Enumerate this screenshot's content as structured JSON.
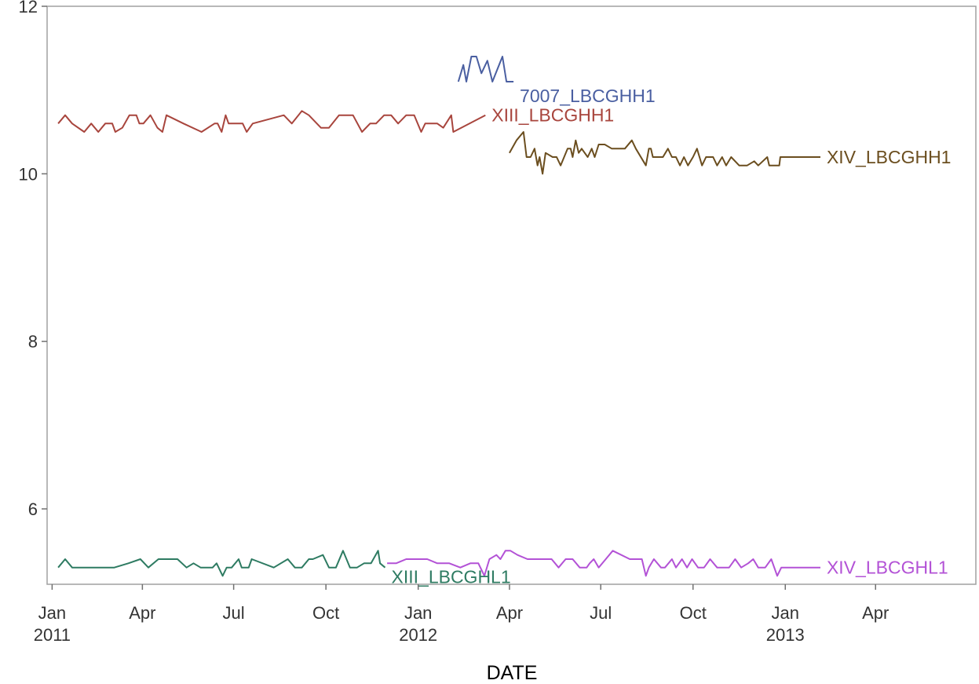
{
  "chart_data": {
    "type": "line",
    "xlabel": "DATE",
    "ylabel": "",
    "xlim": [
      "2010-12-27",
      "2013-07-10"
    ],
    "ylim": [
      5.1,
      12.0
    ],
    "x_ticks": [
      {
        "date": "2011-01-01",
        "line1": "Jan",
        "line2": "2011"
      },
      {
        "date": "2011-04-01",
        "line1": "Apr",
        "line2": ""
      },
      {
        "date": "2011-07-01",
        "line1": "Jul",
        "line2": ""
      },
      {
        "date": "2011-10-01",
        "line1": "Oct",
        "line2": ""
      },
      {
        "date": "2012-01-01",
        "line1": "Jan",
        "line2": "2012"
      },
      {
        "date": "2012-04-01",
        "line1": "Apr",
        "line2": ""
      },
      {
        "date": "2012-07-01",
        "line1": "Jul",
        "line2": ""
      },
      {
        "date": "2012-10-01",
        "line1": "Oct",
        "line2": ""
      },
      {
        "date": "2013-01-01",
        "line1": "Jan",
        "line2": "2013"
      },
      {
        "date": "2013-04-01",
        "line1": "Apr",
        "line2": ""
      }
    ],
    "y_ticks": [
      {
        "value": 6,
        "label": "6"
      },
      {
        "value": 8,
        "label": "8"
      },
      {
        "value": 10,
        "label": "10"
      },
      {
        "value": 12,
        "label": "12"
      }
    ],
    "grid": false,
    "series": [
      {
        "name": "7007_LBCGHH1",
        "color": "#4a5fa1",
        "points": [
          [
            "2012-02-10",
            11.1
          ],
          [
            "2012-02-15",
            11.3
          ],
          [
            "2012-02-18",
            11.1
          ],
          [
            "2012-02-23",
            11.4
          ],
          [
            "2012-02-28",
            11.4
          ],
          [
            "2012-03-04",
            11.2
          ],
          [
            "2012-03-10",
            11.35
          ],
          [
            "2012-03-15",
            11.1
          ],
          [
            "2012-03-25",
            11.4
          ],
          [
            "2012-03-29",
            11.1
          ],
          [
            "2012-04-05",
            11.1
          ]
        ]
      },
      {
        "name": "XIII_LBCGHH1",
        "color": "#a8453d",
        "points": [
          [
            "2011-01-07",
            10.6
          ],
          [
            "2011-01-14",
            10.7
          ],
          [
            "2011-01-21",
            10.6
          ],
          [
            "2011-02-02",
            10.5
          ],
          [
            "2011-02-09",
            10.6
          ],
          [
            "2011-02-16",
            10.5
          ],
          [
            "2011-02-23",
            10.6
          ],
          [
            "2011-03-02",
            10.6
          ],
          [
            "2011-03-05",
            10.5
          ],
          [
            "2011-03-12",
            10.55
          ],
          [
            "2011-03-19",
            10.7
          ],
          [
            "2011-03-26",
            10.7
          ],
          [
            "2011-03-29",
            10.6
          ],
          [
            "2011-04-02",
            10.6
          ],
          [
            "2011-04-09",
            10.7
          ],
          [
            "2011-04-16",
            10.55
          ],
          [
            "2011-04-21",
            10.5
          ],
          [
            "2011-04-25",
            10.7
          ],
          [
            "2011-05-12",
            10.6
          ],
          [
            "2011-05-30",
            10.5
          ],
          [
            "2011-06-12",
            10.6
          ],
          [
            "2011-06-15",
            10.6
          ],
          [
            "2011-06-19",
            10.5
          ],
          [
            "2011-06-23",
            10.7
          ],
          [
            "2011-06-26",
            10.6
          ],
          [
            "2011-07-10",
            10.6
          ],
          [
            "2011-07-14",
            10.5
          ],
          [
            "2011-07-20",
            10.6
          ],
          [
            "2011-08-20",
            10.7
          ],
          [
            "2011-08-28",
            10.6
          ],
          [
            "2011-09-07",
            10.75
          ],
          [
            "2011-09-14",
            10.7
          ],
          [
            "2011-09-26",
            10.55
          ],
          [
            "2011-10-04",
            10.55
          ],
          [
            "2011-10-14",
            10.7
          ],
          [
            "2011-10-28",
            10.7
          ],
          [
            "2011-11-06",
            10.5
          ],
          [
            "2011-11-14",
            10.6
          ],
          [
            "2011-11-20",
            10.6
          ],
          [
            "2011-11-28",
            10.7
          ],
          [
            "2011-12-05",
            10.7
          ],
          [
            "2011-12-12",
            10.6
          ],
          [
            "2011-12-20",
            10.7
          ],
          [
            "2011-12-28",
            10.7
          ],
          [
            "2012-01-04",
            10.5
          ],
          [
            "2012-01-08",
            10.6
          ],
          [
            "2012-01-20",
            10.6
          ],
          [
            "2012-01-26",
            10.55
          ],
          [
            "2012-02-03",
            10.7
          ],
          [
            "2012-02-05",
            10.5
          ],
          [
            "2012-03-08",
            10.7
          ]
        ]
      },
      {
        "name": "XIV_LBCGHH1",
        "color": "#6b4e1f",
        "points": [
          [
            "2012-04-01",
            10.25
          ],
          [
            "2012-04-08",
            10.4
          ],
          [
            "2012-04-15",
            10.5
          ],
          [
            "2012-04-18",
            10.2
          ],
          [
            "2012-04-22",
            10.2
          ],
          [
            "2012-04-26",
            10.3
          ],
          [
            "2012-04-29",
            10.1
          ],
          [
            "2012-05-01",
            10.2
          ],
          [
            "2012-05-04",
            10.0
          ],
          [
            "2012-05-07",
            10.25
          ],
          [
            "2012-05-14",
            10.2
          ],
          [
            "2012-05-18",
            10.2
          ],
          [
            "2012-05-22",
            10.1
          ],
          [
            "2012-05-29",
            10.3
          ],
          [
            "2012-06-01",
            10.3
          ],
          [
            "2012-06-03",
            10.2
          ],
          [
            "2012-06-06",
            10.4
          ],
          [
            "2012-06-09",
            10.25
          ],
          [
            "2012-06-12",
            10.3
          ],
          [
            "2012-06-18",
            10.2
          ],
          [
            "2012-06-22",
            10.3
          ],
          [
            "2012-06-25",
            10.2
          ],
          [
            "2012-06-29",
            10.35
          ],
          [
            "2012-07-05",
            10.35
          ],
          [
            "2012-07-12",
            10.3
          ],
          [
            "2012-07-18",
            10.3
          ],
          [
            "2012-07-25",
            10.3
          ],
          [
            "2012-08-01",
            10.4
          ],
          [
            "2012-08-05",
            10.3
          ],
          [
            "2012-08-15",
            10.1
          ],
          [
            "2012-08-18",
            10.3
          ],
          [
            "2012-08-20",
            10.3
          ],
          [
            "2012-08-22",
            10.2
          ],
          [
            "2012-08-26",
            10.2
          ],
          [
            "2012-09-01",
            10.2
          ],
          [
            "2012-09-06",
            10.3
          ],
          [
            "2012-09-10",
            10.2
          ],
          [
            "2012-09-14",
            10.2
          ],
          [
            "2012-09-18",
            10.1
          ],
          [
            "2012-09-22",
            10.2
          ],
          [
            "2012-09-26",
            10.1
          ],
          [
            "2012-10-01",
            10.2
          ],
          [
            "2012-10-05",
            10.3
          ],
          [
            "2012-10-10",
            10.1
          ],
          [
            "2012-10-14",
            10.2
          ],
          [
            "2012-10-21",
            10.2
          ],
          [
            "2012-10-25",
            10.1
          ],
          [
            "2012-10-30",
            10.2
          ],
          [
            "2012-11-03",
            10.1
          ],
          [
            "2012-11-08",
            10.2
          ],
          [
            "2012-11-16",
            10.1
          ],
          [
            "2012-11-24",
            10.1
          ],
          [
            "2012-12-01",
            10.15
          ],
          [
            "2012-12-05",
            10.1
          ],
          [
            "2012-12-14",
            10.2
          ],
          [
            "2012-12-16",
            10.1
          ],
          [
            "2012-12-26",
            10.1
          ],
          [
            "2012-12-27",
            10.2
          ],
          [
            "2013-01-04",
            10.2
          ],
          [
            "2013-01-15",
            10.2
          ],
          [
            "2013-01-25",
            10.2
          ],
          [
            "2013-02-05",
            10.2
          ]
        ]
      },
      {
        "name": "XIII_LBCGHL1",
        "color": "#2e7b62",
        "points": [
          [
            "2011-01-07",
            5.3
          ],
          [
            "2011-01-14",
            5.4
          ],
          [
            "2011-01-21",
            5.3
          ],
          [
            "2011-01-28",
            5.3
          ],
          [
            "2011-02-04",
            5.3
          ],
          [
            "2011-02-11",
            5.3
          ],
          [
            "2011-02-18",
            5.3
          ],
          [
            "2011-02-25",
            5.3
          ],
          [
            "2011-03-04",
            5.3
          ],
          [
            "2011-03-18",
            5.35
          ],
          [
            "2011-03-30",
            5.4
          ],
          [
            "2011-04-07",
            5.3
          ],
          [
            "2011-04-17",
            5.4
          ],
          [
            "2011-04-23",
            5.4
          ],
          [
            "2011-05-06",
            5.4
          ],
          [
            "2011-05-15",
            5.3
          ],
          [
            "2011-05-22",
            5.35
          ],
          [
            "2011-05-29",
            5.3
          ],
          [
            "2011-06-03",
            5.3
          ],
          [
            "2011-06-10",
            5.3
          ],
          [
            "2011-06-14",
            5.35
          ],
          [
            "2011-06-20",
            5.2
          ],
          [
            "2011-06-24",
            5.3
          ],
          [
            "2011-06-29",
            5.3
          ],
          [
            "2011-07-06",
            5.4
          ],
          [
            "2011-07-09",
            5.3
          ],
          [
            "2011-07-16",
            5.3
          ],
          [
            "2011-07-19",
            5.4
          ],
          [
            "2011-08-10",
            5.3
          ],
          [
            "2011-08-24",
            5.4
          ],
          [
            "2011-08-31",
            5.3
          ],
          [
            "2011-09-07",
            5.3
          ],
          [
            "2011-09-14",
            5.4
          ],
          [
            "2011-09-18",
            5.4
          ],
          [
            "2011-09-28",
            5.45
          ],
          [
            "2011-10-04",
            5.3
          ],
          [
            "2011-10-11",
            5.3
          ],
          [
            "2011-10-18",
            5.5
          ],
          [
            "2011-10-25",
            5.3
          ],
          [
            "2011-11-01",
            5.3
          ],
          [
            "2011-11-08",
            5.35
          ],
          [
            "2011-11-15",
            5.35
          ],
          [
            "2011-11-22",
            5.5
          ],
          [
            "2011-11-24",
            5.35
          ],
          [
            "2011-11-29",
            5.3
          ]
        ]
      },
      {
        "name": "XIV_LBCGHL1",
        "color": "#b352d6",
        "points": [
          [
            "2011-12-01",
            5.35
          ],
          [
            "2011-12-10",
            5.35
          ],
          [
            "2011-12-20",
            5.4
          ],
          [
            "2011-12-31",
            5.4
          ],
          [
            "2012-01-10",
            5.4
          ],
          [
            "2012-01-20",
            5.35
          ],
          [
            "2012-02-01",
            5.35
          ],
          [
            "2012-02-12",
            5.3
          ],
          [
            "2012-02-22",
            5.35
          ],
          [
            "2012-03-01",
            5.35
          ],
          [
            "2012-03-07",
            5.2
          ],
          [
            "2012-03-12",
            5.4
          ],
          [
            "2012-03-19",
            5.45
          ],
          [
            "2012-03-23",
            5.4
          ],
          [
            "2012-03-28",
            5.5
          ],
          [
            "2012-04-02",
            5.5
          ],
          [
            "2012-04-09",
            5.45
          ],
          [
            "2012-04-19",
            5.4
          ],
          [
            "2012-04-27",
            5.4
          ],
          [
            "2012-05-03",
            5.4
          ],
          [
            "2012-05-07",
            5.4
          ],
          [
            "2012-05-10",
            5.4
          ],
          [
            "2012-05-13",
            5.4
          ],
          [
            "2012-05-20",
            5.3
          ],
          [
            "2012-05-27",
            5.4
          ],
          [
            "2012-06-03",
            5.4
          ],
          [
            "2012-06-10",
            5.3
          ],
          [
            "2012-06-17",
            5.3
          ],
          [
            "2012-06-20",
            5.35
          ],
          [
            "2012-06-24",
            5.4
          ],
          [
            "2012-06-29",
            5.3
          ],
          [
            "2012-07-06",
            5.4
          ],
          [
            "2012-07-13",
            5.5
          ],
          [
            "2012-07-30",
            5.4
          ],
          [
            "2012-08-04",
            5.4
          ],
          [
            "2012-08-11",
            5.4
          ],
          [
            "2012-08-15",
            5.2
          ],
          [
            "2012-08-18",
            5.3
          ],
          [
            "2012-08-23",
            5.4
          ],
          [
            "2012-08-30",
            5.3
          ],
          [
            "2012-09-03",
            5.3
          ],
          [
            "2012-09-10",
            5.4
          ],
          [
            "2012-09-14",
            5.3
          ],
          [
            "2012-09-20",
            5.4
          ],
          [
            "2012-09-25",
            5.3
          ],
          [
            "2012-09-30",
            5.4
          ],
          [
            "2012-10-06",
            5.3
          ],
          [
            "2012-10-12",
            5.3
          ],
          [
            "2012-10-18",
            5.4
          ],
          [
            "2012-10-25",
            5.3
          ],
          [
            "2012-11-06",
            5.3
          ],
          [
            "2012-11-12",
            5.4
          ],
          [
            "2012-11-18",
            5.3
          ],
          [
            "2012-11-25",
            5.35
          ],
          [
            "2012-11-30",
            5.4
          ],
          [
            "2012-12-05",
            5.3
          ],
          [
            "2012-12-12",
            5.3
          ],
          [
            "2012-12-18",
            5.4
          ],
          [
            "2012-12-24",
            5.2
          ],
          [
            "2012-12-28",
            5.3
          ],
          [
            "2013-01-10",
            5.3
          ],
          [
            "2013-01-20",
            5.3
          ],
          [
            "2013-02-05",
            5.3
          ]
        ]
      }
    ]
  }
}
